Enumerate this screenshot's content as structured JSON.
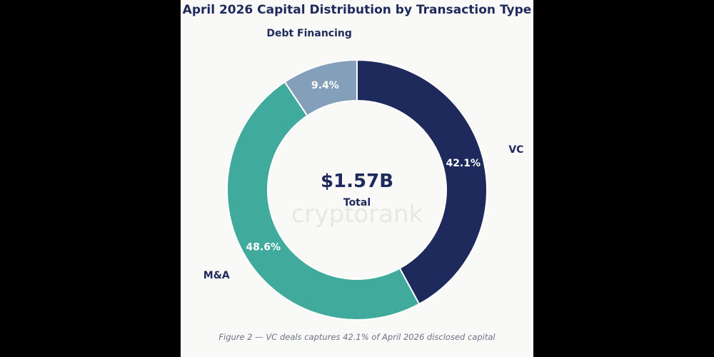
{
  "chart_data": {
    "type": "pie",
    "variant": "donut",
    "title": "April 2026 Capital Distribution by Transaction Type",
    "categories": [
      "VC",
      "M&A",
      "Debt Financing"
    ],
    "values": [
      42.1,
      48.6,
      9.4
    ],
    "value_labels": [
      "42.1%",
      "48.6%",
      "9.4%"
    ],
    "colors": [
      "#1f2a5c",
      "#40aa9c",
      "#849fba"
    ],
    "center_value": "$1.57B",
    "center_label": "Total",
    "caption": "Figure 2 — VC deals captures 42.1% of April 2026 disclosed capital",
    "watermark": "cryptorank",
    "legend": "none"
  }
}
